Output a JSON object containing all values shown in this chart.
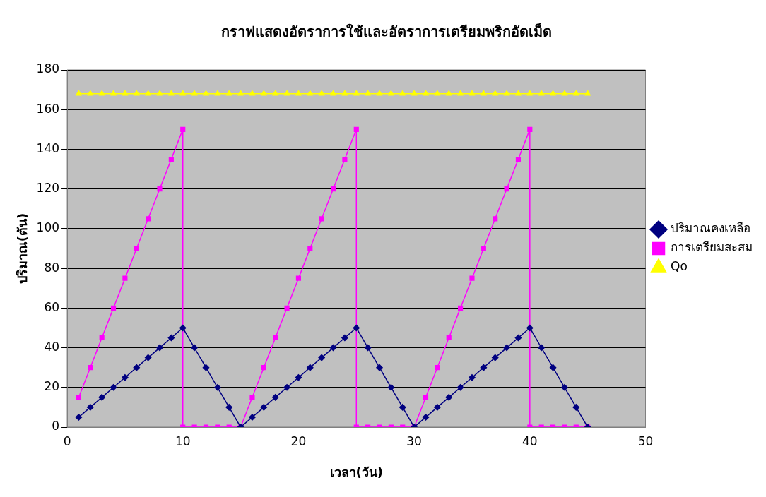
{
  "chart_data": {
    "type": "line",
    "title": "กราฟแสดงอัตราการใช้และอัตราการเตรียมพริกอัดเม็ด",
    "xlabel": "เวลา(วัน)",
    "ylabel": "ปริมาณ(ตัน)",
    "xlim": [
      0,
      50
    ],
    "xticks": [
      0,
      10,
      20,
      30,
      40,
      50
    ],
    "ylim": [
      0,
      180
    ],
    "yticks": [
      0,
      20,
      40,
      60,
      80,
      100,
      120,
      140,
      160,
      180
    ],
    "grid": "y",
    "legend": "right",
    "series": [
      {
        "name": "ปริมาณคงเหลือ",
        "color": "#000080",
        "marker": "diamond",
        "x": [
          1,
          2,
          3,
          4,
          5,
          6,
          7,
          8,
          9,
          10,
          11,
          12,
          13,
          14,
          15,
          16,
          17,
          18,
          19,
          20,
          21,
          22,
          23,
          24,
          25,
          26,
          27,
          28,
          29,
          30,
          31,
          32,
          33,
          34,
          35,
          36,
          37,
          38,
          39,
          40,
          41,
          42,
          43,
          44,
          45
        ],
        "values": [
          5,
          10,
          15,
          20,
          25,
          30,
          35,
          40,
          45,
          50,
          40,
          30,
          20,
          10,
          0,
          5,
          10,
          15,
          20,
          25,
          30,
          35,
          40,
          45,
          50,
          40,
          30,
          20,
          10,
          0,
          5,
          10,
          15,
          20,
          25,
          30,
          35,
          40,
          45,
          50,
          40,
          30,
          20,
          10,
          0
        ]
      },
      {
        "name": "การเตรียมสะสม",
        "color": "#ff00ff",
        "marker": "square",
        "x": [
          1,
          2,
          3,
          4,
          5,
          6,
          7,
          8,
          9,
          10,
          10,
          11,
          12,
          13,
          14,
          15,
          16,
          17,
          18,
          19,
          20,
          21,
          22,
          23,
          24,
          25,
          25,
          26,
          27,
          28,
          29,
          30,
          31,
          32,
          33,
          34,
          35,
          36,
          37,
          38,
          39,
          40,
          40,
          41,
          42,
          43,
          44,
          45
        ],
        "values": [
          15,
          30,
          45,
          60,
          75,
          90,
          105,
          120,
          135,
          150,
          0,
          0,
          0,
          0,
          0,
          0,
          15,
          30,
          45,
          60,
          75,
          90,
          105,
          120,
          135,
          150,
          0,
          0,
          0,
          0,
          0,
          0,
          15,
          30,
          45,
          60,
          75,
          90,
          105,
          120,
          135,
          150,
          0,
          0,
          0,
          0,
          0,
          0
        ]
      },
      {
        "name": "Qo",
        "color": "#ffff00",
        "marker": "triangle",
        "x": [
          1,
          2,
          3,
          4,
          5,
          6,
          7,
          8,
          9,
          10,
          11,
          12,
          13,
          14,
          15,
          16,
          17,
          18,
          19,
          20,
          21,
          22,
          23,
          24,
          25,
          26,
          27,
          28,
          29,
          30,
          31,
          32,
          33,
          34,
          35,
          36,
          37,
          38,
          39,
          40,
          41,
          42,
          43,
          44,
          45
        ],
        "values": [
          168,
          168,
          168,
          168,
          168,
          168,
          168,
          168,
          168,
          168,
          168,
          168,
          168,
          168,
          168,
          168,
          168,
          168,
          168,
          168,
          168,
          168,
          168,
          168,
          168,
          168,
          168,
          168,
          168,
          168,
          168,
          168,
          168,
          168,
          168,
          168,
          168,
          168,
          168,
          168,
          168,
          168,
          168,
          168,
          168
        ]
      }
    ]
  }
}
